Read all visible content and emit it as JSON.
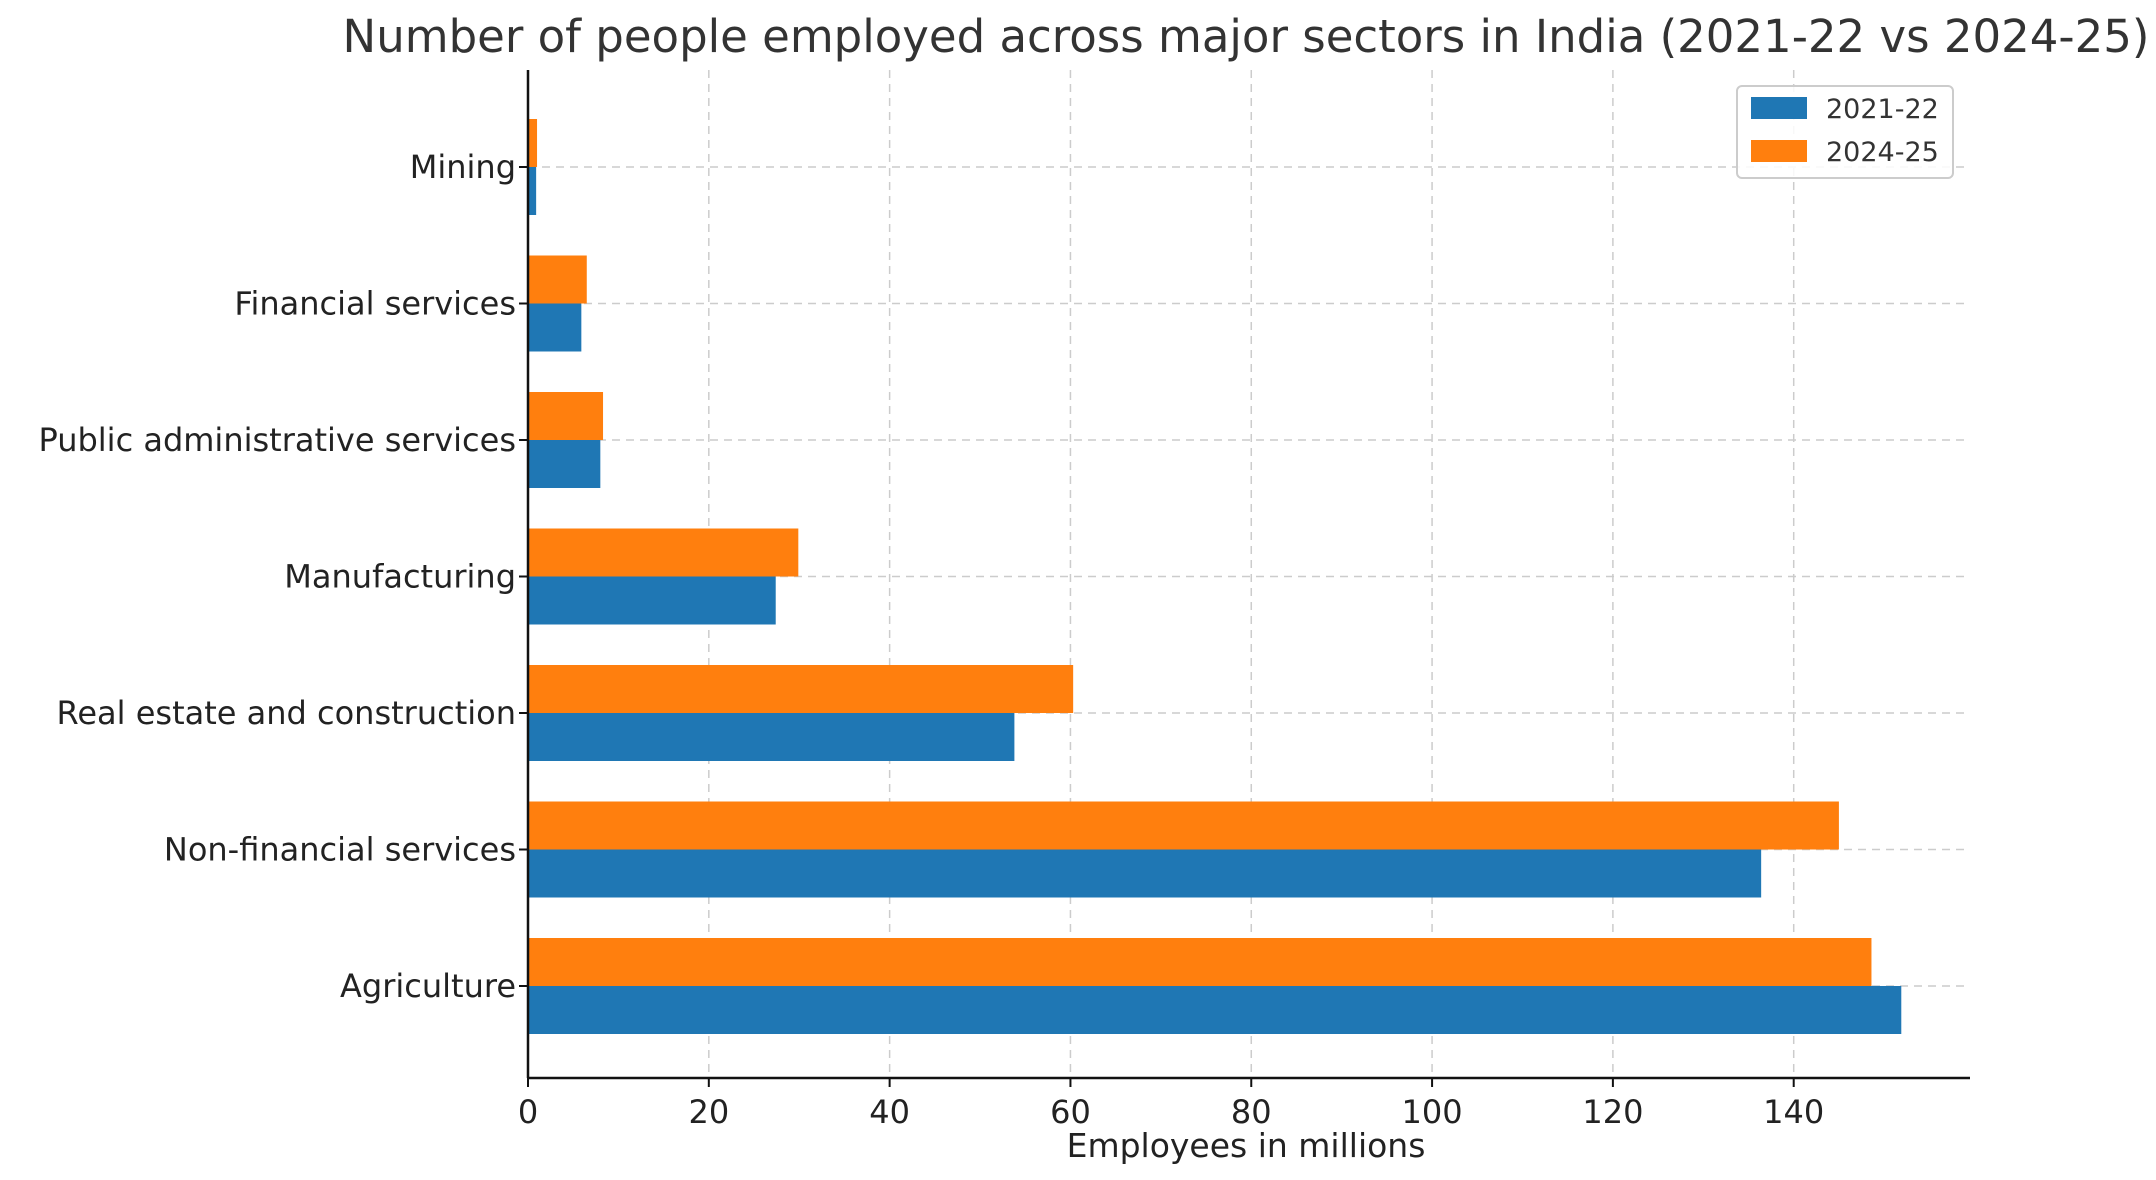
{
  "chart_data": {
    "type": "bar",
    "orientation": "horizontal",
    "title": "Number of people employed across major sectors in India (2021-22 vs 2024-25)",
    "xlabel": "Employees in millions",
    "ylabel": "",
    "categories": [
      "Agriculture",
      "Non-financial services",
      "Real estate and construction",
      "Manufacturing",
      "Public administrative services",
      "Financial services",
      "Mining"
    ],
    "series": [
      {
        "name": "2021-22",
        "color": "#1f77b4",
        "values": [
          151.9,
          136.4,
          53.8,
          27.4,
          8.0,
          5.9,
          0.9
        ]
      },
      {
        "name": "2024-25",
        "color": "#ff7f0e",
        "values": [
          148.6,
          145.0,
          60.3,
          29.9,
          8.3,
          6.5,
          1.0
        ]
      }
    ],
    "xlim": [
      0,
      159.5
    ],
    "xticks": [
      0,
      20,
      40,
      60,
      80,
      100,
      120,
      140
    ],
    "xtick_labels": [
      "0",
      "20",
      "40",
      "60",
      "80",
      "100",
      "120",
      "140"
    ],
    "grid": true,
    "legend_position": "upper right"
  }
}
